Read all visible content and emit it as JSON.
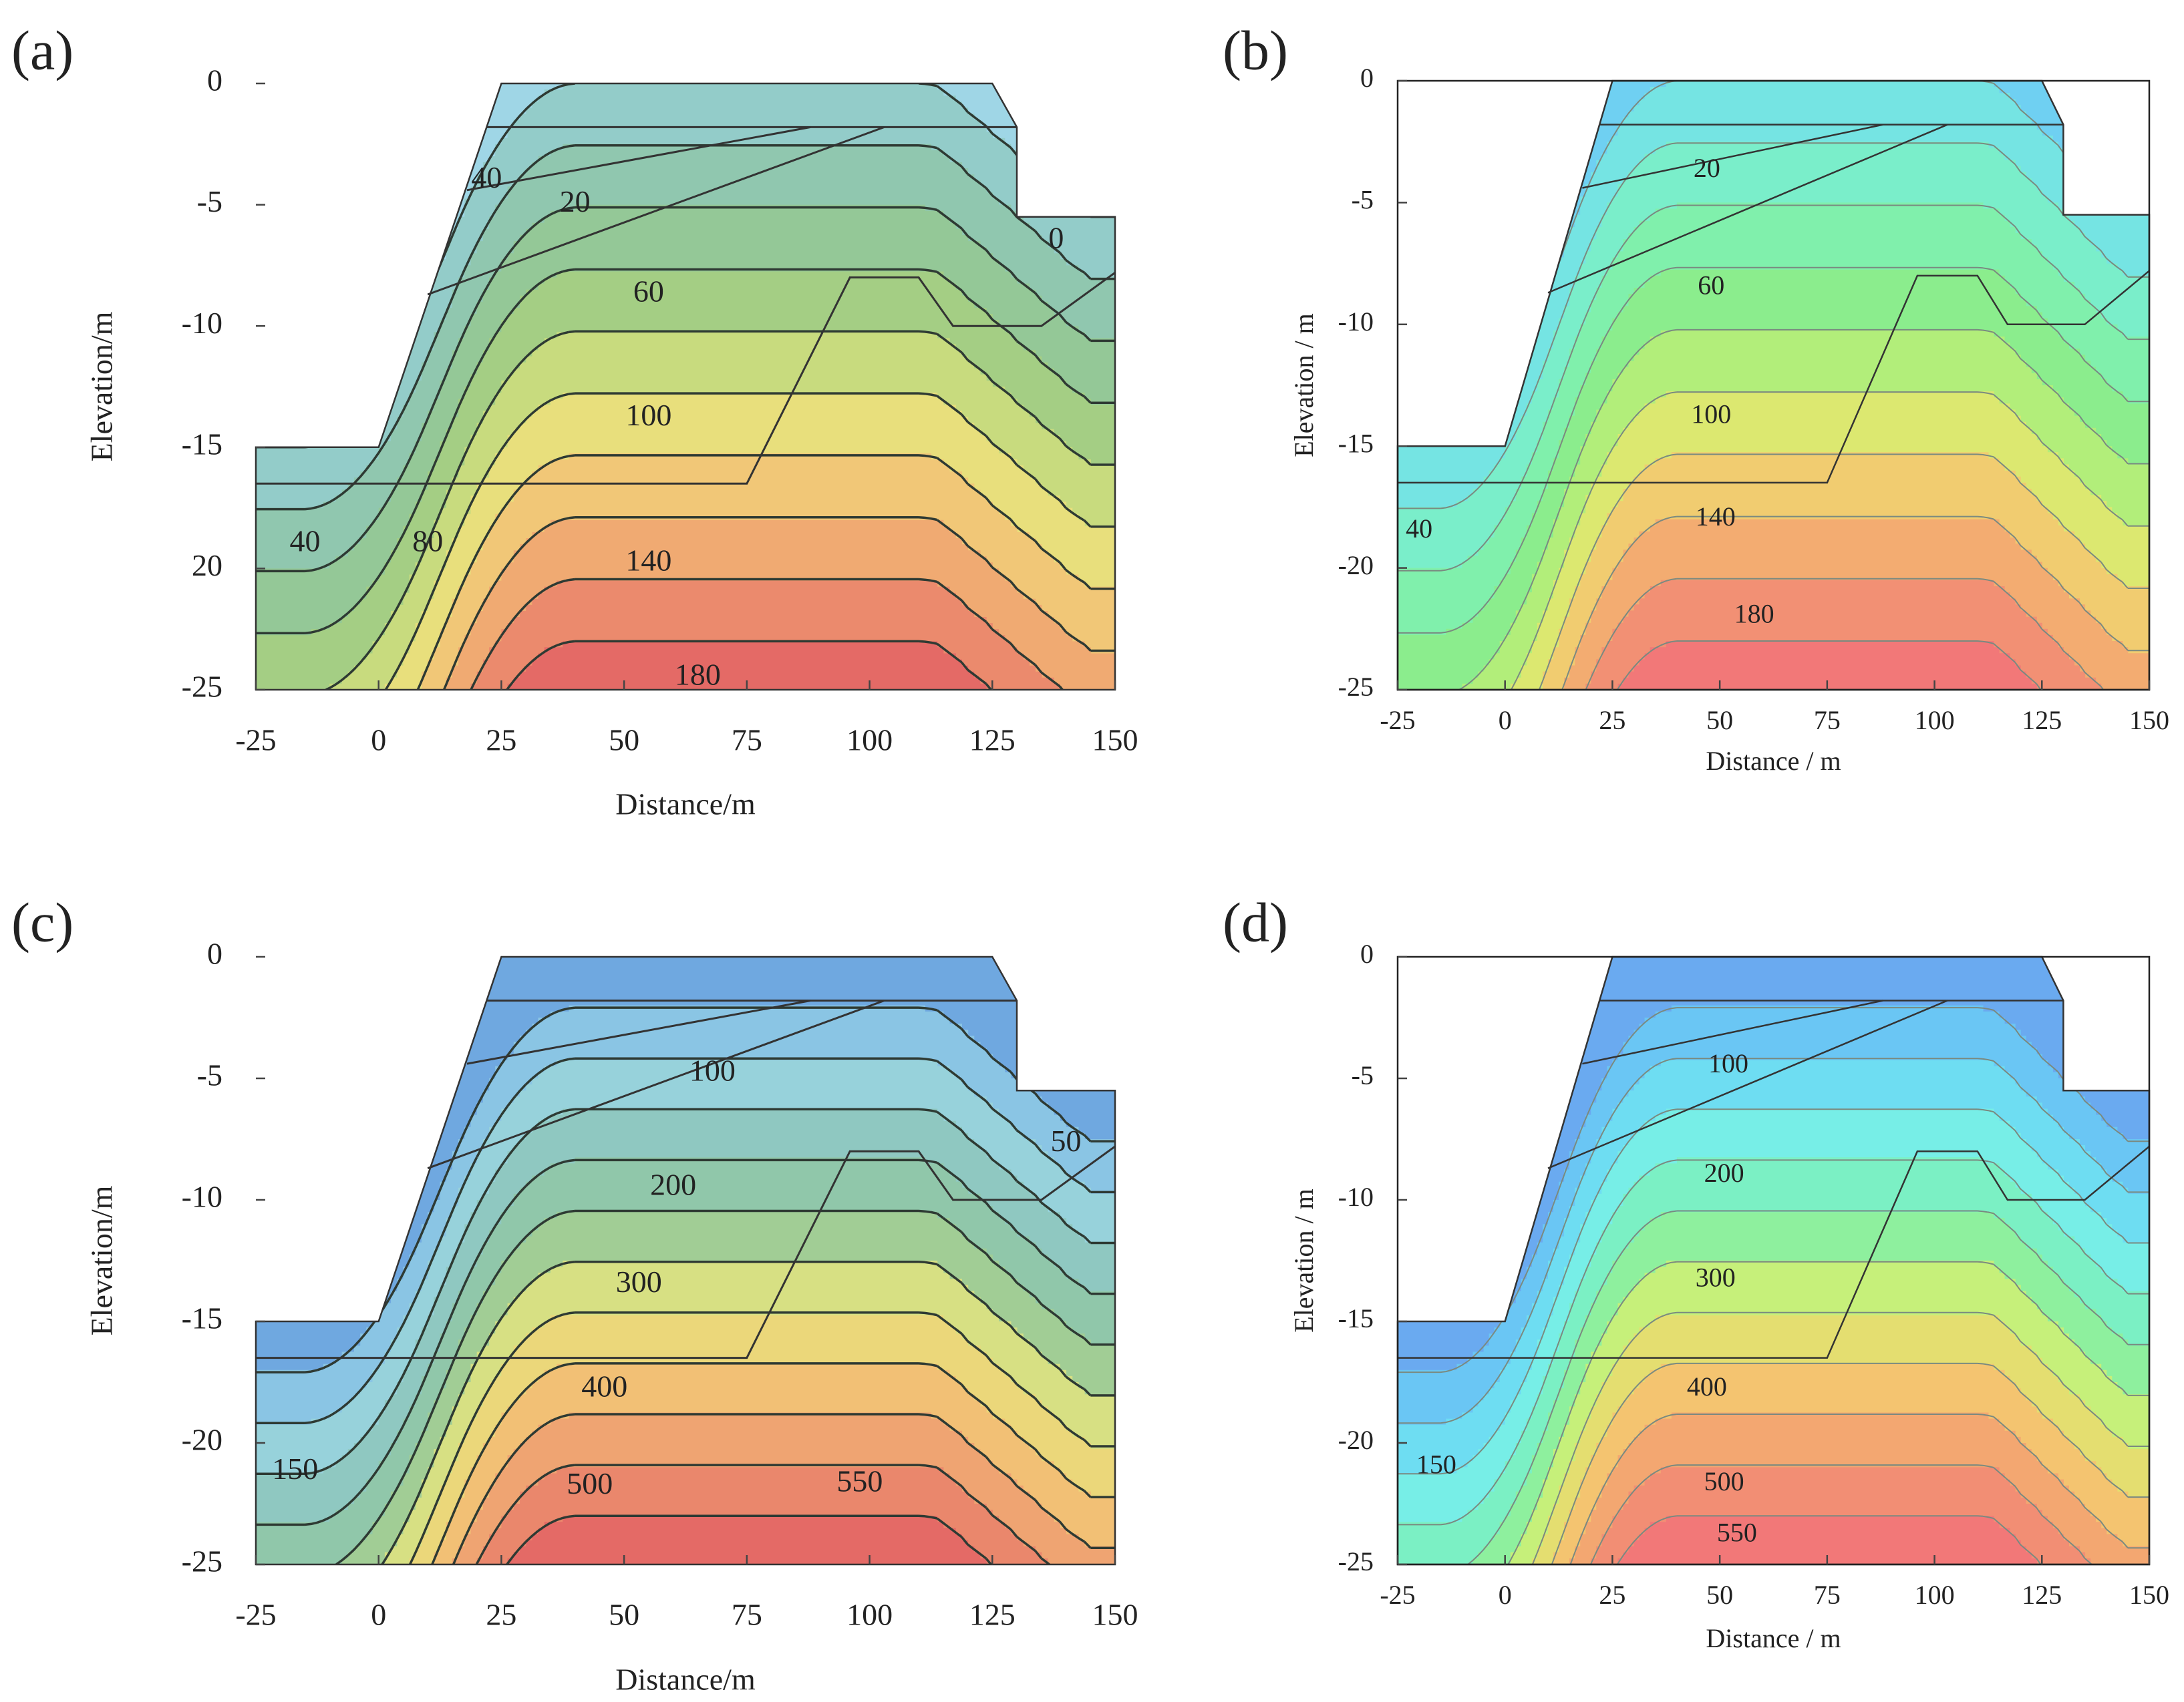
{
  "chart_data": [
    {
      "type": "contour",
      "panel_label": "(a)",
      "xlabel": "Distance/m",
      "ylabel": "Elevation/m",
      "xlim": [
        -25,
        150
      ],
      "ylim": [
        -25,
        0
      ],
      "xticks": [
        -25,
        0,
        25,
        50,
        75,
        100,
        125,
        150
      ],
      "yticks": [
        -25,
        {
          "value": -20,
          "label": "20"
        },
        -15,
        -10,
        -5,
        0
      ],
      "frame": false,
      "levels": [
        0,
        20,
        40,
        60,
        80,
        100,
        120,
        140,
        160,
        180
      ],
      "colormap": [
        "#9fd6e6",
        "#8ec7bd",
        "#92c79a",
        "#a9d07e",
        "#e6e67e",
        "#f2c476",
        "#ee9870",
        "#e46a66"
      ],
      "line_color": "#2e3a33",
      "contour_labels": [
        {
          "value": 40,
          "x": 22,
          "y": -4
        },
        {
          "value": 20,
          "x": 40,
          "y": -5
        },
        {
          "value": 0,
          "x": 138,
          "y": -6.5
        },
        {
          "value": 60,
          "x": 55,
          "y": -8.7
        },
        {
          "value": 100,
          "x": 55,
          "y": -13.8
        },
        {
          "value": 40,
          "x": -15,
          "y": -19
        },
        {
          "value": 80,
          "x": 10,
          "y": -19
        },
        {
          "value": 140,
          "x": 55,
          "y": -19.8
        },
        {
          "value": 180,
          "x": 65,
          "y": -24.5
        }
      ]
    },
    {
      "type": "contour",
      "panel_label": "(b)",
      "xlabel": "Distance / m",
      "ylabel": "Elevation / m",
      "xlim": [
        -25,
        150
      ],
      "ylim": [
        -25,
        0
      ],
      "xticks": [
        -25,
        0,
        25,
        50,
        75,
        100,
        125,
        150
      ],
      "yticks": [
        -25,
        -20,
        -15,
        -10,
        -5,
        0
      ],
      "frame": true,
      "levels": [
        0,
        20,
        40,
        60,
        80,
        100,
        120,
        140,
        160,
        180
      ],
      "colormap": [
        "#6fd0f2",
        "#78ecdc",
        "#7ef0b0",
        "#8eec84",
        "#d6f070",
        "#f4c870",
        "#f29a72",
        "#f27878"
      ],
      "line_color": "#7a8a80",
      "contour_labels": [
        {
          "value": 20,
          "x": 47,
          "y": -3.7
        },
        {
          "value": 60,
          "x": 48,
          "y": -8.5
        },
        {
          "value": 100,
          "x": 48,
          "y": -13.8
        },
        {
          "value": 40,
          "x": -20,
          "y": -18.5
        },
        {
          "value": 140,
          "x": 49,
          "y": -18
        },
        {
          "value": 180,
          "x": 58,
          "y": -22
        }
      ]
    },
    {
      "type": "contour",
      "panel_label": "(c)",
      "xlabel": "Distance/m",
      "ylabel": "Elevation/m",
      "xlim": [
        -25,
        150
      ],
      "ylim": [
        -25,
        0
      ],
      "xticks": [
        -25,
        0,
        25,
        50,
        75,
        100,
        125,
        150
      ],
      "yticks": [
        -25,
        -20,
        -15,
        -10,
        -5,
        0
      ],
      "frame": false,
      "levels": [
        50,
        100,
        150,
        200,
        250,
        300,
        350,
        400,
        450,
        500,
        550
      ],
      "colormap": [
        "#6fa8e0",
        "#9ad6e6",
        "#8ec7bd",
        "#92c79a",
        "#e6e67e",
        "#f2c476",
        "#ee9870",
        "#e46a66"
      ],
      "line_color": "#2e3a33",
      "contour_labels": [
        {
          "value": 100,
          "x": 68,
          "y": -4.8
        },
        {
          "value": 50,
          "x": 140,
          "y": -7.7
        },
        {
          "value": 200,
          "x": 60,
          "y": -9.5
        },
        {
          "value": 300,
          "x": 53,
          "y": -13.5
        },
        {
          "value": 400,
          "x": 46,
          "y": -17.8
        },
        {
          "value": 150,
          "x": -17,
          "y": -21.2
        },
        {
          "value": 500,
          "x": 43,
          "y": -21.8
        },
        {
          "value": 550,
          "x": 98,
          "y": -21.7
        }
      ]
    },
    {
      "type": "contour",
      "panel_label": "(d)",
      "xlabel": "Distance / m",
      "ylabel": "Elevation / m",
      "xlim": [
        -25,
        150
      ],
      "ylim": [
        -25,
        0
      ],
      "xticks": [
        -25,
        0,
        25,
        50,
        75,
        100,
        125,
        150
      ],
      "yticks": [
        -25,
        -20,
        -15,
        -10,
        -5,
        0
      ],
      "frame": true,
      "levels": [
        50,
        100,
        150,
        200,
        250,
        300,
        350,
        400,
        450,
        500,
        550
      ],
      "colormap": [
        "#6aaaf0",
        "#6ad6f6",
        "#78f0e6",
        "#7ef0a8",
        "#d6f070",
        "#f4c870",
        "#f29a72",
        "#f27878"
      ],
      "line_color": "#7a8a80",
      "contour_labels": [
        {
          "value": 100,
          "x": 52,
          "y": -4.5
        },
        {
          "value": 200,
          "x": 51,
          "y": -9
        },
        {
          "value": 300,
          "x": 49,
          "y": -13.3
        },
        {
          "value": 400,
          "x": 47,
          "y": -17.8
        },
        {
          "value": 150,
          "x": -16,
          "y": -21
        },
        {
          "value": 500,
          "x": 51,
          "y": -21.7
        },
        {
          "value": 550,
          "x": 54,
          "y": -23.8
        }
      ]
    }
  ]
}
